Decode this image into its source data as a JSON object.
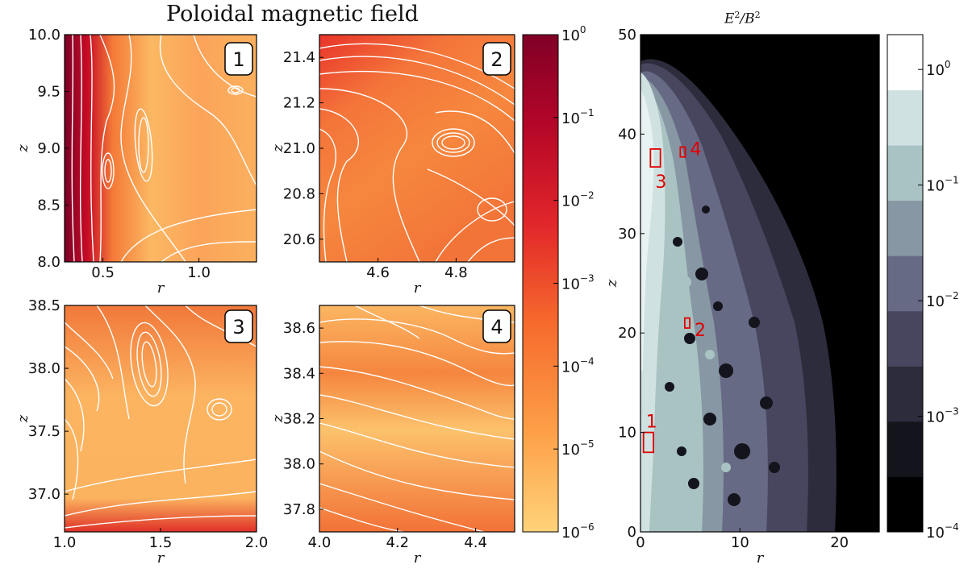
{
  "figure": {
    "left_title": "Poloidal magnetic field",
    "right_title_base": "E",
    "right_title_exp": "2",
    "right_title_sep": "/",
    "right_title_base2": "B",
    "right_title_exp2": "2"
  },
  "chart_data": [
    {
      "type": "heatmap",
      "panel": "1",
      "xlabel": "r",
      "ylabel": "z",
      "xlim": [
        0.3,
        1.3
      ],
      "ylim": [
        8.0,
        10.0
      ],
      "xticks": [
        0.5,
        1.0
      ],
      "xtick_labels": [
        "0.5",
        "1.0"
      ],
      "yticks": [
        8.0,
        8.5,
        9.0,
        9.5,
        10.0
      ],
      "ytick_labels": [
        "8.0",
        "8.5",
        "9.0",
        "9.5",
        "10.0"
      ],
      "colormap": "YlOrRd (log scale)",
      "overlay": "white streamlines with arrows"
    },
    {
      "type": "heatmap",
      "panel": "2",
      "xlabel": "r",
      "ylabel": "z",
      "xlim": [
        4.45,
        4.95
      ],
      "ylim": [
        20.5,
        21.5
      ],
      "xticks": [
        4.6,
        4.8
      ],
      "xtick_labels": [
        "4.6",
        "4.8"
      ],
      "yticks": [
        20.6,
        20.8,
        21.0,
        21.2,
        21.4
      ],
      "ytick_labels": [
        "20.6",
        "20.8",
        "21.0",
        "21.2",
        "21.4"
      ],
      "colormap": "YlOrRd (log scale)",
      "overlay": "white streamlines with arrows"
    },
    {
      "type": "heatmap",
      "panel": "3",
      "xlabel": "r",
      "ylabel": "z",
      "xlim": [
        1.0,
        2.0
      ],
      "ylim": [
        36.7,
        38.5
      ],
      "xticks": [
        1.0,
        1.5,
        2.0
      ],
      "xtick_labels": [
        "1.0",
        "1.5",
        "2.0"
      ],
      "yticks": [
        37.0,
        37.5,
        38.0,
        38.5
      ],
      "ytick_labels": [
        "37.0",
        "37.5",
        "38.0",
        "38.5"
      ],
      "colormap": "YlOrRd (log scale)",
      "overlay": "white streamlines with arrows"
    },
    {
      "type": "heatmap",
      "panel": "4",
      "xlabel": "r",
      "ylabel": "z",
      "xlim": [
        4.0,
        4.5
      ],
      "ylim": [
        37.7,
        38.7
      ],
      "xticks": [
        4.0,
        4.2,
        4.4
      ],
      "xtick_labels": [
        "4.0",
        "4.2",
        "4.4"
      ],
      "yticks": [
        37.8,
        38.0,
        38.2,
        38.4,
        38.6
      ],
      "ytick_labels": [
        "37.8",
        "38.0",
        "38.2",
        "38.4",
        "38.6"
      ],
      "colormap": "YlOrRd (log scale)",
      "overlay": "white streamlines with arrows"
    },
    {
      "type": "heatmap",
      "panel": "E2/B2",
      "xlabel": "r",
      "ylabel": "z",
      "xlim": [
        0,
        24
      ],
      "ylim": [
        0,
        50
      ],
      "xticks": [
        0,
        10,
        20
      ],
      "xtick_labels": [
        "0",
        "10",
        "20"
      ],
      "yticks": [
        0,
        10,
        20,
        30,
        40,
        50
      ],
      "ytick_labels": [
        "0",
        "10",
        "20",
        "30",
        "40",
        "50"
      ],
      "colormap": "bone (log scale, discrete contours)",
      "boxes": [
        {
          "label": "1",
          "r": [
            0.3,
            1.3
          ],
          "z": [
            8.0,
            10.0
          ]
        },
        {
          "label": "2",
          "r": [
            4.45,
            4.95
          ],
          "z": [
            20.5,
            21.5
          ]
        },
        {
          "label": "3",
          "r": [
            1.0,
            2.0
          ],
          "z": [
            36.7,
            38.5
          ]
        },
        {
          "label": "4",
          "r": [
            4.0,
            4.5
          ],
          "z": [
            37.7,
            38.7
          ]
        }
      ]
    }
  ],
  "colorbars": {
    "field": {
      "range": [
        1e-06,
        1.0
      ],
      "scale": "log",
      "ticks": [
        {
          "base": "10",
          "exp": "0",
          "value": 1.0
        },
        {
          "base": "10",
          "exp": "−1",
          "value": 0.1
        },
        {
          "base": "10",
          "exp": "−2",
          "value": 0.01
        },
        {
          "base": "10",
          "exp": "−3",
          "value": 0.001
        },
        {
          "base": "10",
          "exp": "−4",
          "value": 0.0001
        },
        {
          "base": "10",
          "exp": "−5",
          "value": 1e-05
        },
        {
          "base": "10",
          "exp": "−6",
          "value": 1e-06
        }
      ],
      "colors": [
        "#ffd37a",
        "#fda048",
        "#f66a2c",
        "#e2262a",
        "#b40628",
        "#800026"
      ]
    },
    "ratio": {
      "range": [
        0.0001,
        2.0
      ],
      "scale": "log",
      "levels": 9,
      "ticks": [
        {
          "base": "10",
          "exp": "0",
          "value": 1.0
        },
        {
          "base": "10",
          "exp": "−1",
          "value": 0.1
        },
        {
          "base": "10",
          "exp": "−2",
          "value": 0.01
        },
        {
          "base": "10",
          "exp": "−3",
          "value": 0.001
        },
        {
          "base": "10",
          "exp": "−4",
          "value": 0.0001
        }
      ],
      "colors": [
        "#000000",
        "#14141c",
        "#2c2c3c",
        "#47465e",
        "#676a85",
        "#8797a3",
        "#a9c3c3",
        "#cfe1e1",
        "#ffffff"
      ]
    }
  }
}
